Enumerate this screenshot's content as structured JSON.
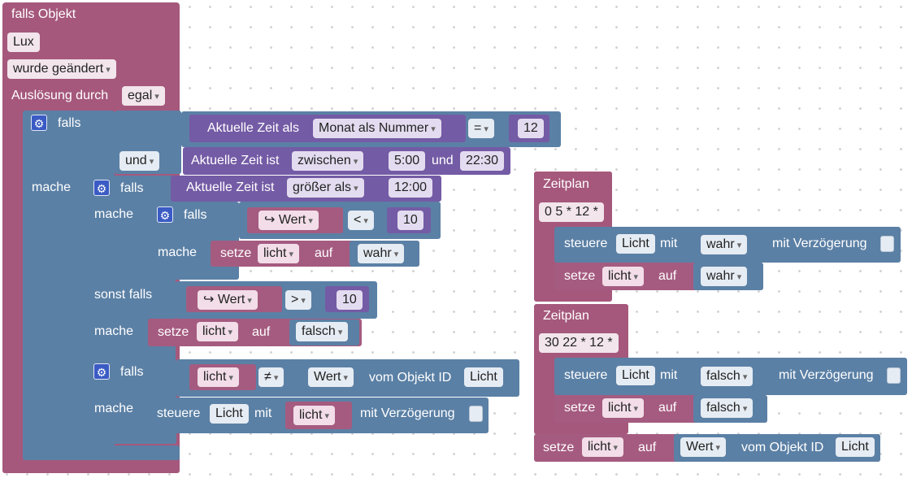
{
  "trigger": {
    "title": "falls Objekt",
    "object_id": "Lux",
    "condition": "wurde geändert",
    "trigger_by_label": "Auslösung durch",
    "trigger_by_value": "egal"
  },
  "kw": {
    "falls": "falls",
    "mache": "mache",
    "und": "und",
    "sonst_falls": "sonst falls",
    "setze": "setze",
    "auf": "auf",
    "steuere": "steuere",
    "mit": "mit",
    "mit_verzoegerung": "mit Verzögerung",
    "vom_objekt_id": "vom Objekt ID",
    "wert_prefix": "↪"
  },
  "if1": {
    "cond_a_label": "Aktuelle Zeit als",
    "cond_a_mode": "Monat als Nummer",
    "cond_a_op": "=",
    "cond_a_value": "12",
    "logic_op": "und",
    "cond_b_label": "Aktuelle Zeit ist",
    "cond_b_mode": "zwischen",
    "cond_b_from": "5:00",
    "cond_b_and": "und",
    "cond_b_to": "22:30"
  },
  "if2": {
    "cond_label": "Aktuelle Zeit ist",
    "cond_mode": "größer als",
    "cond_value": "12:00"
  },
  "if3": {
    "var": "Wert",
    "op": "<",
    "value": "10",
    "set_var": "licht",
    "set_value": "wahr"
  },
  "elseif": {
    "var": "Wert",
    "op": ">",
    "value": "10",
    "set_var": "licht",
    "set_value": "falsch"
  },
  "if4": {
    "var_a": "licht",
    "op": "≠",
    "var_b": "Wert",
    "object_id": "Licht",
    "control_object": "Licht",
    "control_var": "licht"
  },
  "schedule1": {
    "title": "Zeitplan",
    "cron": "0 5 * 12 *",
    "control_object": "Licht",
    "control_value": "wahr",
    "set_var": "licht",
    "set_value": "wahr"
  },
  "schedule2": {
    "title": "Zeitplan",
    "cron": "30 22 * 12 *",
    "control_object": "Licht",
    "control_value": "falsch",
    "set_var": "licht",
    "set_value": "falsch"
  },
  "bottom_set": {
    "set_var": "licht",
    "value_var": "Wert",
    "object_id": "Licht"
  }
}
